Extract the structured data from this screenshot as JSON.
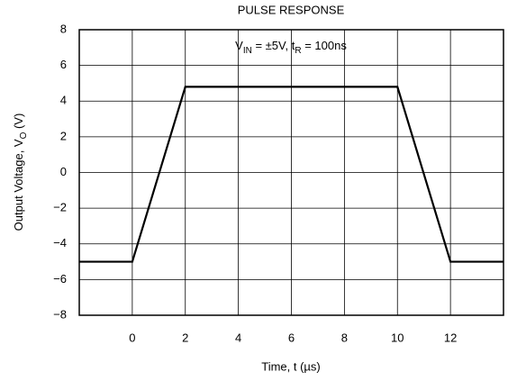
{
  "chart_data": {
    "type": "line",
    "title": "PULSE RESPONSE",
    "annotation": [
      "V",
      "IN",
      " = ±5V, t",
      "R",
      " = 100ns"
    ],
    "x_label": "Time, t (µs)",
    "y_label": [
      "Output Voltage, V",
      "O",
      " (V)"
    ],
    "x": [
      -2,
      0,
      2,
      10,
      12,
      14
    ],
    "values": [
      -5,
      -5,
      4.8,
      4.8,
      -5,
      -5
    ],
    "color": "#000000",
    "xlim": [
      -2,
      14
    ],
    "xticks": [
      0,
      2,
      4,
      6,
      8,
      10,
      12
    ],
    "ylim": [
      -8,
      8
    ],
    "yticks": [
      {
        "value": -8,
        "label": "−8"
      },
      {
        "value": -6,
        "label": "−6"
      },
      {
        "value": -4,
        "label": "−4"
      },
      {
        "value": -2,
        "label": "−2"
      },
      0,
      2,
      4,
      6,
      8
    ],
    "grid": true
  }
}
